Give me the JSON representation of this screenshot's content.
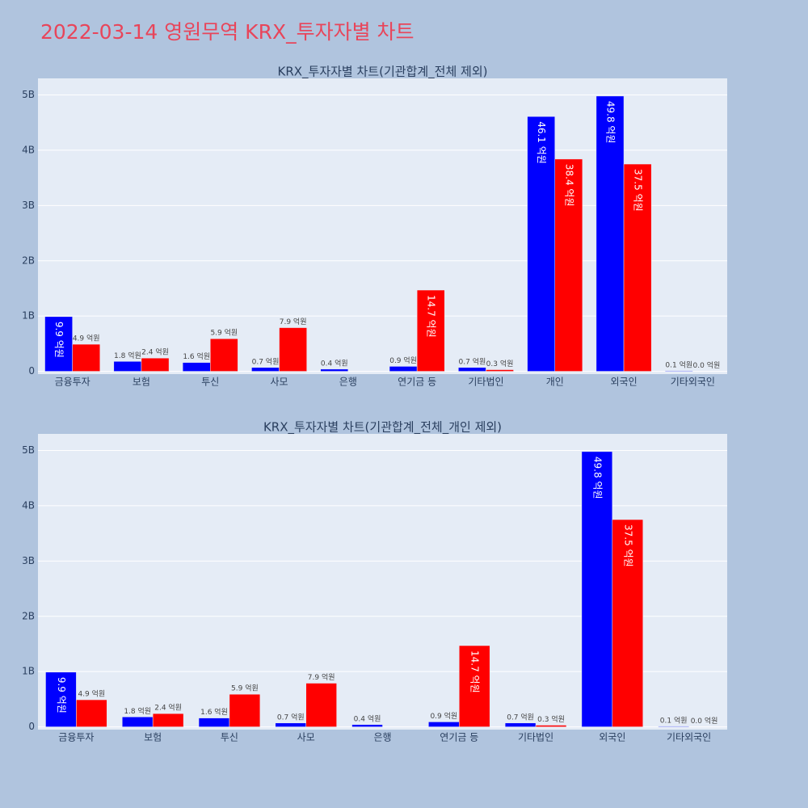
{
  "title": "2022-03-14 영원무역 KRX_투자자별 차트",
  "chart_data": [
    {
      "type": "bar",
      "title": "KRX_투자자별 차트(기관합계_전체 제외)",
      "categories": [
        "금융투자",
        "보험",
        "투신",
        "사모",
        "은행",
        "연기금 등",
        "기타법인",
        "개인",
        "외국인",
        "기타외국인"
      ],
      "series": [
        {
          "color": "#0000ff",
          "values": [
            990000000,
            180000000,
            160000000,
            70000000,
            40000000,
            90000000,
            70000000,
            4610000000,
            4980000000,
            10000000
          ],
          "value_labels": [
            "9.9 억원",
            "1.8 억원",
            "1.6 억원",
            "0.7 억원",
            "0.4 억원",
            "0.9 억원",
            "0.7 억원",
            "46.1 억원",
            "49.8 억원",
            "0.1 억원"
          ]
        },
        {
          "color": "#ff0000",
          "values": [
            490000000,
            240000000,
            590000000,
            790000000,
            null,
            1470000000,
            30000000,
            3840000000,
            3750000000,
            0
          ],
          "value_labels": [
            "4.9 억원",
            "2.4 억원",
            "5.9 억원",
            "7.9 억원",
            null,
            "14.7 억원",
            "0.3 억원",
            "38.4 억원",
            "37.5 억원",
            "0.0 억원"
          ]
        }
      ],
      "ylim": [
        -50000000,
        5300000000
      ],
      "yticks": [
        0,
        {
          "value": 1000000000,
          "label": "1B"
        },
        {
          "value": 2000000000,
          "label": "2B"
        },
        {
          "value": 3000000000,
          "label": "3B"
        },
        {
          "value": 4000000000,
          "label": "4B"
        },
        {
          "value": 5000000000,
          "label": "5B"
        }
      ],
      "grid": true
    },
    {
      "type": "bar",
      "title": "KRX_투자자별 차트(기관합계_전체_개인 제외)",
      "categories": [
        "금융투자",
        "보험",
        "투신",
        "사모",
        "은행",
        "연기금 등",
        "기타법인",
        "외국인",
        "기타외국인"
      ],
      "series": [
        {
          "color": "#0000ff",
          "values": [
            990000000,
            180000000,
            160000000,
            70000000,
            40000000,
            90000000,
            70000000,
            4980000000,
            10000000
          ],
          "value_labels": [
            "9.9 억원",
            "1.8 억원",
            "1.6 억원",
            "0.7 억원",
            "0.4 억원",
            "0.9 억원",
            "0.7 억원",
            "49.8 억원",
            "0.1 억원"
          ]
        },
        {
          "color": "#ff0000",
          "values": [
            490000000,
            240000000,
            590000000,
            790000000,
            null,
            1470000000,
            30000000,
            3750000000,
            0
          ],
          "value_labels": [
            "4.9 억원",
            "2.4 억원",
            "5.9 억원",
            "7.9 억원",
            null,
            "14.7 억원",
            "0.3 억원",
            "37.5 억원",
            "0.0 억원"
          ]
        }
      ],
      "ylim": [
        -50000000,
        5300000000
      ],
      "yticks": [
        0,
        {
          "value": 1000000000,
          "label": "1B"
        },
        {
          "value": 2000000000,
          "label": "2B"
        },
        {
          "value": 3000000000,
          "label": "3B"
        },
        {
          "value": 4000000000,
          "label": "4B"
        },
        {
          "value": 5000000000,
          "label": "5B"
        }
      ],
      "grid": true
    }
  ]
}
